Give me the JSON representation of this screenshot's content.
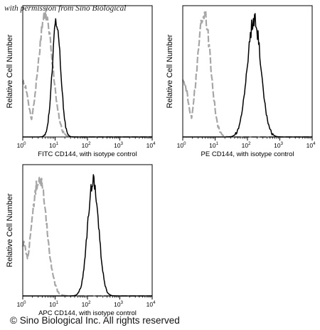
{
  "watermark": "with permission from Sino Biological",
  "footer": "© Sino Biological Inc. All rights reserved",
  "colors": {
    "isotype": "#a6a6a6",
    "sample": "#000000",
    "axis": "#000000"
  },
  "chart_data": [
    {
      "type": "line",
      "xlabel": "FITC CD144, with isotype control",
      "ylabel": "Relative Cell Number",
      "xscale": "log",
      "xlim": [
        1,
        10000
      ],
      "x_ticks": [
        {
          "base": "10",
          "exp": "0"
        },
        {
          "base": "10",
          "exp": "1"
        },
        {
          "base": "10",
          "exp": "2"
        },
        {
          "base": "10",
          "exp": "3"
        },
        {
          "base": "10",
          "exp": "4"
        }
      ],
      "series": [
        {
          "style": "dashed",
          "color": "gray",
          "peak_x": 5,
          "sd_log": 0.22,
          "peak_height": 0.93
        },
        {
          "style": "solid",
          "color": "black",
          "peak_x": 11,
          "sd_log": 0.13,
          "peak_height": 0.88
        }
      ]
    },
    {
      "type": "line",
      "xlabel": "PE CD144, with isotype control",
      "ylabel": "Relative Cell Number",
      "xscale": "log",
      "xlim": [
        1,
        10000
      ],
      "x_ticks": [
        {
          "base": "10",
          "exp": "0"
        },
        {
          "base": "10",
          "exp": "1"
        },
        {
          "base": "10",
          "exp": "2"
        },
        {
          "base": "10",
          "exp": "3"
        },
        {
          "base": "10",
          "exp": "4"
        }
      ],
      "series": [
        {
          "style": "dashed",
          "color": "gray",
          "peak_x": 4.5,
          "sd_log": 0.2,
          "peak_height": 0.95
        },
        {
          "style": "solid",
          "color": "black",
          "peak_x": 160,
          "sd_log": 0.21,
          "peak_height": 0.9
        }
      ]
    },
    {
      "type": "line",
      "xlabel": "APC CD144, with isotype control",
      "ylabel": "Relative Cell Number",
      "xscale": "log",
      "xlim": [
        1,
        10000
      ],
      "x_ticks": [
        {
          "base": "10",
          "exp": "0"
        },
        {
          "base": "10",
          "exp": "1"
        },
        {
          "base": "10",
          "exp": "2"
        },
        {
          "base": "10",
          "exp": "3"
        },
        {
          "base": "10",
          "exp": "4"
        }
      ],
      "series": [
        {
          "style": "dashed",
          "color": "gray",
          "peak_x": 3.2,
          "sd_log": 0.23,
          "peak_height": 0.9
        },
        {
          "style": "solid",
          "color": "black",
          "peak_x": 150,
          "sd_log": 0.17,
          "peak_height": 0.88
        }
      ]
    }
  ]
}
